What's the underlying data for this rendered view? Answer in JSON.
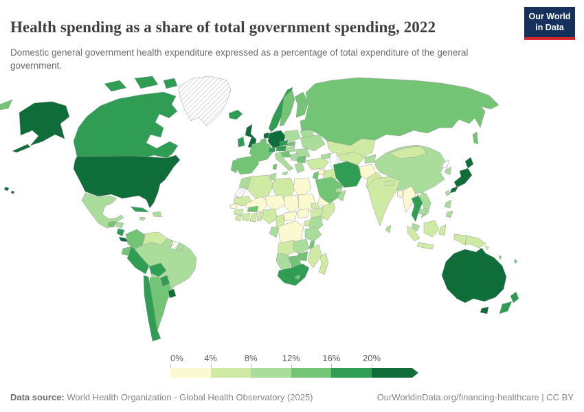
{
  "header": {
    "title": "Health spending as a share of total government spending, 2022",
    "subtitle": "Domestic general government health expenditure expressed as a percentage of total expenditure of the general government.",
    "logo": {
      "line1": "Our World",
      "line2": "in Data",
      "bg_color": "#15315B",
      "stripe_color": "#D8252C"
    }
  },
  "footer": {
    "source_label": "Data source:",
    "source_text": " World Health Organization - Global Health Observatory (2025)",
    "link_text": "OurWorldinData.org/financing-healthcare | CC BY"
  },
  "chart_data": {
    "type": "choropleth",
    "title": "Health spending as a share of total government spending, 2022",
    "unit": "%",
    "legend_position": "bottom",
    "scale": {
      "tick_labels": [
        "0%",
        "4%",
        "8%",
        "12%",
        "16%",
        "20%"
      ],
      "bins": [
        "0-4%",
        "4-8%",
        "8-12%",
        "12-16%",
        "16-20%",
        "20%+"
      ],
      "colors": [
        "#fbf9cf",
        "#cfeaa3",
        "#aadc9b",
        "#74c476",
        "#2f9e54",
        "#0e6d39"
      ],
      "no_data_style": "hatched",
      "open_ended_upper": true
    },
    "regions": {
      "alaska": 5,
      "united_states": 5,
      "hawaii": 5,
      "canada": 4,
      "canada_arctic_islands": 4,
      "greenland": -1,
      "mexico": 2,
      "guatemala": 3,
      "honduras": 2,
      "nicaragua": 4,
      "costa_rica": 5,
      "panama": 4,
      "cuba": 4,
      "jamaica": 2,
      "hispaniola": 2,
      "colombia": 3,
      "venezuela": 1,
      "guyana": 3,
      "suriname": -1,
      "french_guiana": 2,
      "ecuador": 3,
      "peru": 4,
      "brazil": 2,
      "bolivia": 4,
      "paraguay": 4,
      "chile": 4,
      "argentina": 3,
      "uruguay": 5,
      "iceland": 4,
      "ireland": 4,
      "united_kingdom": 5,
      "norway": 4,
      "sweden": 3,
      "finland": 3,
      "denmark": 4,
      "baltic_states": 3,
      "belarus": 2,
      "poland": 2,
      "germany": 5,
      "netherlands": 5,
      "belgium": 3,
      "france": 3,
      "spain": 3,
      "portugal": 3,
      "switzerland": 4,
      "czechia": 4,
      "austria": 4,
      "slovakia": 3,
      "hungary": 2,
      "ukraine": 2,
      "romania": 2,
      "croatia": 3,
      "serbia": 2,
      "bulgaria": 3,
      "greece": 2,
      "italy": 2,
      "sicily": 2,
      "sardinia": 3,
      "russia": 3,
      "chukotka": 3,
      "sakhalin": 3,
      "kazakhstan": 1,
      "caucasus": 2,
      "turkey": 1,
      "syria": 0,
      "jordan_israel": 3,
      "iraq": 1,
      "iran": 4,
      "afghanistan": 0,
      "pakistan": 1,
      "turkmenistan_uzbekistan": 1,
      "kyrgyzstan_tajikistan": 2,
      "saudi_arabia": 3,
      "yemen": 0,
      "oman": 2,
      "gulf_states": 2,
      "india": 1,
      "nepal": 1,
      "bangladesh": 0,
      "sri_lanka": 2,
      "china": 2,
      "taiwan": 2,
      "mongolia": 1,
      "north_korea": -1,
      "south_korea": 2,
      "japan": 5,
      "myanmar": 0,
      "thailand": 4,
      "laos": 1,
      "vietnam": 2,
      "cambodia": 2,
      "malaysia": 2,
      "philippines": 2,
      "indonesia": 1,
      "papua_new_guinea": 1,
      "australia": 5,
      "tasmania": 5,
      "new_zealand": 4,
      "solomon_islands": 1,
      "vanuatu": 3,
      "fiji": 3,
      "morocco": 2,
      "western_sahara": -1,
      "algeria": 1,
      "tunisia": 2,
      "libya": 1,
      "egypt": 0,
      "mauritania": 1,
      "mali": 0,
      "niger": 0,
      "chad": 0,
      "sudan": 0,
      "eritrea": 1,
      "ethiopia": 1,
      "somalia": 1,
      "senegal": 0,
      "guinea": 1,
      "sierra_leone": 1,
      "cote_divoire": 1,
      "ghana": 1,
      "togo_benin": 1,
      "burkina_faso": 3,
      "nigeria": 1,
      "cameroon": 1,
      "central_african_republic": 0,
      "south_sudan": 0,
      "dr_congo": 0,
      "gabon_congo": 2,
      "uganda": 1,
      "kenya": 2,
      "tanzania": 2,
      "angola": 1,
      "zambia": 2,
      "malawi": 3,
      "mozambique": 1,
      "zimbabwe": 3,
      "botswana": 3,
      "namibia": 2,
      "south_africa": 4,
      "lesotho": 3,
      "madagascar": 1
    }
  }
}
